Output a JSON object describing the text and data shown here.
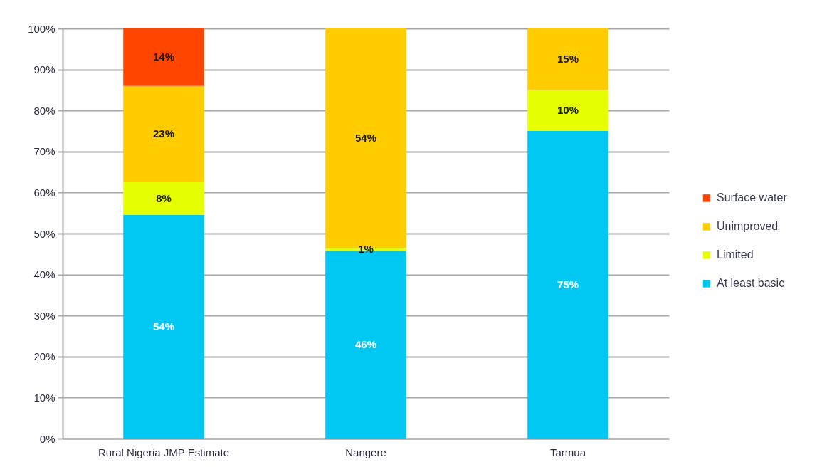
{
  "chart_data": {
    "type": "bar",
    "stacked": true,
    "categories": [
      "Rural Nigeria JMP Estimate",
      "Nangere",
      "Tarmua"
    ],
    "series": [
      {
        "name": "At least basic",
        "color": "#00c8f2",
        "values": [
          54.5,
          45.8,
          75
        ],
        "value_labels": [
          "54%",
          "46%",
          "75%"
        ]
      },
      {
        "name": "Limited",
        "color": "#e6ff00",
        "values": [
          8,
          0.7,
          10
        ],
        "value_labels": [
          "8%",
          "1%",
          "10%"
        ]
      },
      {
        "name": "Unimproved",
        "color": "#ffcc00",
        "values": [
          23.5,
          53.5,
          15
        ],
        "value_labels": [
          "23%",
          "54%",
          "15%"
        ]
      },
      {
        "name": "Surface water",
        "color": "#ff4500",
        "values": [
          14,
          null,
          null
        ],
        "value_labels": [
          "14%",
          null,
          null
        ]
      }
    ],
    "ylim": [
      0,
      100
    ],
    "yticks": [
      {
        "value": 0,
        "label": "0%"
      },
      {
        "value": 10,
        "label": "10%"
      },
      {
        "value": 20,
        "label": "20%"
      },
      {
        "value": 30,
        "label": "30%"
      },
      {
        "value": 40,
        "label": "40%"
      },
      {
        "value": 50,
        "label": "50%"
      },
      {
        "value": 60,
        "label": "60%"
      },
      {
        "value": 70,
        "label": "70%"
      },
      {
        "value": 80,
        "label": "80%"
      },
      {
        "value": 90,
        "label": "90%"
      },
      {
        "value": 100,
        "label": "100%"
      }
    ],
    "grid": "y",
    "legend": "right"
  }
}
